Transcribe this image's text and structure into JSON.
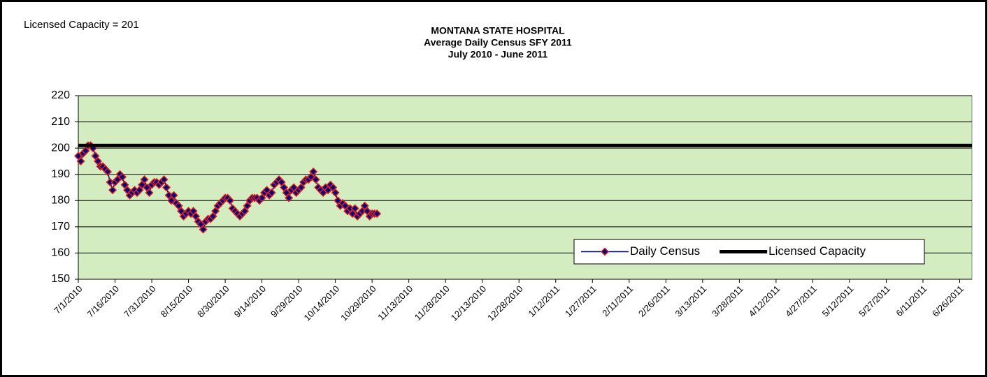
{
  "chart_data": {
    "type": "line",
    "title": "MONTANA STATE HOSPITAL",
    "subtitle": [
      "Average Daily Census SFY 2011",
      "July 2010 - June 2011"
    ],
    "annotation": "Licensed Capacity = 201",
    "plot_background": "#d3ecc0",
    "grid": true,
    "legend_loc": "lower right",
    "xlim": [
      "7/1/2010",
      "7/1/2011"
    ],
    "ylim": [
      150,
      220
    ],
    "yticks": [
      150,
      160,
      170,
      180,
      190,
      200,
      210,
      220
    ],
    "xticks": [
      "7/1/2010",
      "7/16/2010",
      "7/31/2010",
      "8/15/2010",
      "8/30/2010",
      "9/14/2010",
      "9/29/2010",
      "10/14/2010",
      "10/29/2010",
      "11/13/2010",
      "11/28/2010",
      "12/13/2010",
      "12/28/2010",
      "1/12/2011",
      "1/27/2011",
      "2/11/2011",
      "2/26/2011",
      "3/13/2011",
      "3/28/2011",
      "4/12/2011",
      "4/27/2011",
      "5/12/2011",
      "5/27/2011",
      "6/11/2011",
      "6/26/2011"
    ],
    "series": [
      {
        "name": "Daily Census",
        "color": "#000080",
        "marker_edge": "#e0201a",
        "marker": "diamond",
        "x": [
          "7/1/2010",
          "7/2/2010",
          "7/3/2010",
          "7/4/2010",
          "7/5/2010",
          "7/6/2010",
          "7/7/2010",
          "7/8/2010",
          "7/9/2010",
          "7/10/2010",
          "7/11/2010",
          "7/12/2010",
          "7/13/2010",
          "7/14/2010",
          "7/15/2010",
          "7/16/2010",
          "7/17/2010",
          "7/18/2010",
          "7/19/2010",
          "7/20/2010",
          "7/21/2010",
          "7/22/2010",
          "7/23/2010",
          "7/24/2010",
          "7/25/2010",
          "7/26/2010",
          "7/27/2010",
          "7/28/2010",
          "7/29/2010",
          "7/30/2010",
          "7/31/2010",
          "8/1/2010",
          "8/2/2010",
          "8/3/2010",
          "8/4/2010",
          "8/5/2010",
          "8/6/2010",
          "8/7/2010",
          "8/8/2010",
          "8/9/2010",
          "8/10/2010",
          "8/11/2010",
          "8/12/2010",
          "8/13/2010",
          "8/14/2010",
          "8/15/2010",
          "8/16/2010",
          "8/17/2010",
          "8/18/2010",
          "8/19/2010",
          "8/20/2010",
          "8/21/2010",
          "8/22/2010",
          "8/23/2010",
          "8/24/2010",
          "8/25/2010",
          "8/26/2010",
          "8/27/2010",
          "8/28/2010",
          "8/29/2010",
          "8/30/2010",
          "8/31/2010",
          "9/1/2010",
          "9/2/2010",
          "9/3/2010",
          "9/4/2010",
          "9/5/2010",
          "9/6/2010",
          "9/7/2010",
          "9/8/2010",
          "9/9/2010",
          "9/10/2010",
          "9/11/2010",
          "9/12/2010",
          "9/13/2010",
          "9/14/2010",
          "9/15/2010",
          "9/16/2010",
          "9/17/2010",
          "9/18/2010",
          "9/19/2010",
          "9/20/2010",
          "9/21/2010",
          "9/22/2010",
          "9/23/2010",
          "9/24/2010",
          "9/25/2010",
          "9/26/2010",
          "9/27/2010",
          "9/28/2010",
          "9/29/2010",
          "9/30/2010",
          "10/1/2010",
          "10/2/2010",
          "10/3/2010",
          "10/4/2010",
          "10/5/2010",
          "10/6/2010",
          "10/7/2010",
          "10/8/2010",
          "10/9/2010",
          "10/10/2010",
          "10/11/2010",
          "10/12/2010",
          "10/13/2010",
          "10/14/2010",
          "10/15/2010",
          "10/16/2010",
          "10/17/2010",
          "10/18/2010",
          "10/19/2010",
          "10/20/2010",
          "10/21/2010",
          "10/22/2010",
          "10/23/2010",
          "10/24/2010",
          "10/25/2010",
          "10/26/2010",
          "10/27/2010",
          "10/28/2010",
          "10/29/2010",
          "10/30/2010",
          "10/31/2010"
        ],
        "values": [
          197,
          195,
          198,
          199,
          201,
          201,
          200,
          197,
          195,
          193,
          193,
          192,
          191,
          187,
          184,
          187,
          188,
          190,
          189,
          186,
          184,
          182,
          183,
          184,
          183,
          184,
          186,
          188,
          185,
          183,
          186,
          187,
          187,
          186,
          187,
          188,
          185,
          182,
          180,
          182,
          179,
          178,
          176,
          174,
          175,
          176,
          175,
          176,
          174,
          172,
          171,
          169,
          172,
          173,
          173,
          174,
          176,
          178,
          179,
          180,
          181,
          181,
          180,
          177,
          176,
          175,
          174,
          175,
          176,
          178,
          180,
          181,
          181,
          181,
          180,
          181,
          183,
          184,
          182,
          183,
          186,
          187,
          188,
          187,
          185,
          183,
          181,
          184,
          185,
          183,
          184,
          185,
          187,
          188,
          188,
          189,
          191,
          188,
          185,
          184,
          183,
          185,
          184,
          186,
          185,
          183,
          180,
          178,
          179,
          178,
          176,
          177,
          175,
          177,
          174,
          175,
          176,
          178,
          176,
          174,
          175,
          175,
          175
        ]
      },
      {
        "name": "Licensed Capacity",
        "color": "#000000",
        "x": [
          "7/1/2010",
          "7/1/2011"
        ],
        "values": [
          201,
          201
        ]
      }
    ]
  }
}
